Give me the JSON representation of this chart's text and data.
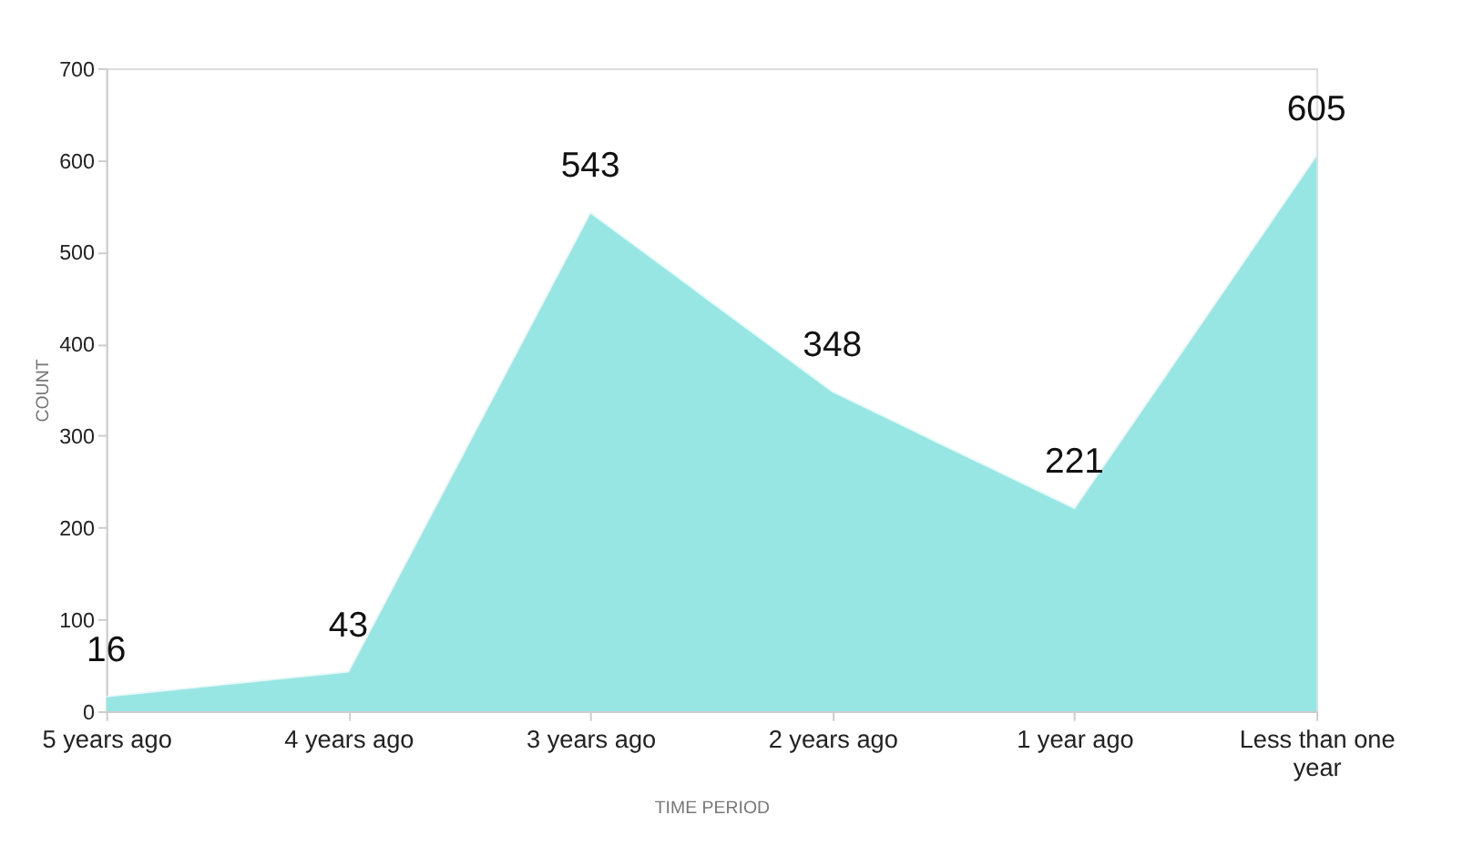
{
  "chart_data": {
    "type": "area",
    "xlabel": "TIME PERIOD",
    "ylabel": "COUNT",
    "categories": [
      "5 years ago",
      "4 years ago",
      "3 years ago",
      "2 years ago",
      "1 year ago",
      "Less than one year"
    ],
    "series": [
      {
        "color": "#98e6e4",
        "values": [
          16,
          43,
          543,
          348,
          221,
          605
        ]
      }
    ],
    "ylim": [
      0,
      700
    ],
    "yticks": [
      0,
      100,
      200,
      300,
      400,
      500,
      600,
      700
    ],
    "data_labels": true,
    "grid": false
  }
}
